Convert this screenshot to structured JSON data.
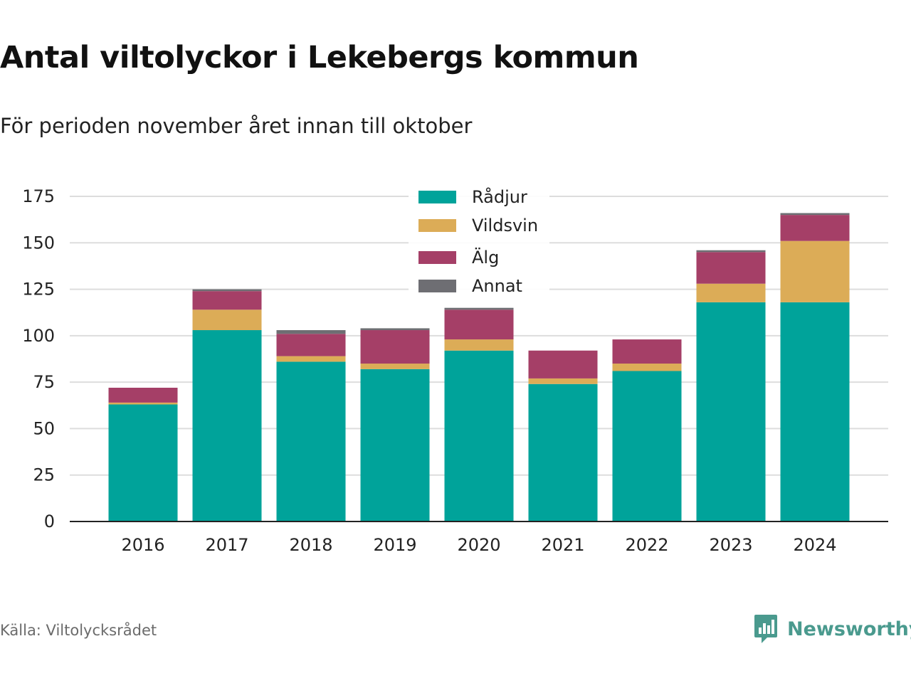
{
  "header": {
    "title": "Antal viltolyckor i Lekebergs kommun",
    "subtitle": "För perioden november året innan till oktober"
  },
  "footer": {
    "source": "Källa: Viltolycksrådet",
    "brand": "Newsworthy",
    "brand_icon": "bar-chart-speech-bubble-icon"
  },
  "colors": {
    "Rådjur": "#00a39a",
    "Vildsvin": "#dcac57",
    "Älg": "#a53f67",
    "Annat": "#6e6e73",
    "grid": "#dddddd",
    "axis": "#222222",
    "brand": "#4a9a8e"
  },
  "chart_data": {
    "type": "bar",
    "stacked": true,
    "title": "Antal viltolyckor i Lekebergs kommun",
    "subtitle": "För perioden november året innan till oktober",
    "xlabel": "",
    "ylabel": "",
    "ylim": [
      0,
      175
    ],
    "yticks": [
      0,
      25,
      50,
      75,
      100,
      125,
      150,
      175
    ],
    "grid": true,
    "legend_position": "top-center",
    "categories": [
      "2016",
      "2017",
      "2018",
      "2019",
      "2020",
      "2021",
      "2022",
      "2023",
      "2024"
    ],
    "series": [
      {
        "name": "Rådjur",
        "values": [
          63,
          103,
          86,
          82,
          92,
          74,
          81,
          118,
          118
        ]
      },
      {
        "name": "Vildsvin",
        "values": [
          1,
          11,
          3,
          3,
          6,
          3,
          4,
          10,
          33
        ]
      },
      {
        "name": "Älg",
        "values": [
          8,
          10,
          12,
          18,
          16,
          15,
          13,
          17,
          14
        ]
      },
      {
        "name": "Annat",
        "values": [
          0,
          1,
          2,
          1,
          1,
          0,
          0,
          1,
          1
        ]
      }
    ]
  }
}
